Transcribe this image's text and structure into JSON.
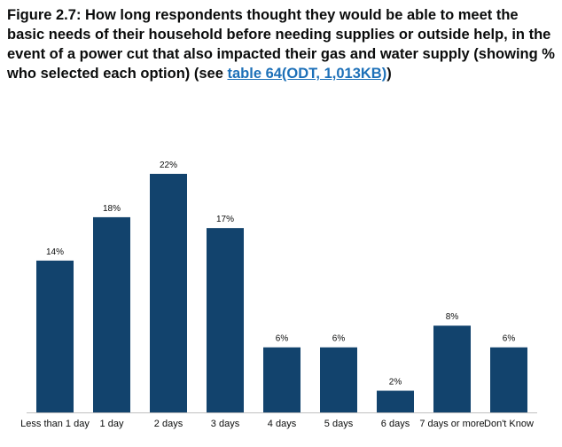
{
  "figure": {
    "title_main": "Figure 2.7: How long respondents thought they would be able to meet the basic needs of their household before needing supplies or outside help, in the event of a power cut that also impacted their gas and water supply (showing % who selected each option) (see ",
    "link_text": "table 64(ODT, 1,013KB)",
    "title_end": ")"
  },
  "colors": {
    "bar": "#12436d",
    "axis": "#bfbfbf",
    "link": "#1d70b8"
  },
  "chart_data": {
    "type": "bar",
    "title": "How long respondents thought they would be able to meet the basic needs of their household",
    "categories": [
      "Less than 1 day",
      "1 day",
      "2 days",
      "3 days",
      "4 days",
      "5 days",
      "6 days",
      "7 days or more",
      "Don't Know"
    ],
    "values": [
      14,
      18,
      22,
      17,
      6,
      6,
      2,
      8,
      6
    ],
    "data_labels": [
      "14%",
      "18%",
      "22%",
      "17%",
      "6%",
      "6%",
      "2%",
      "8%",
      "6%"
    ],
    "ylim": [
      0,
      22
    ],
    "xlabel": "",
    "ylabel": "",
    "grid": false
  }
}
